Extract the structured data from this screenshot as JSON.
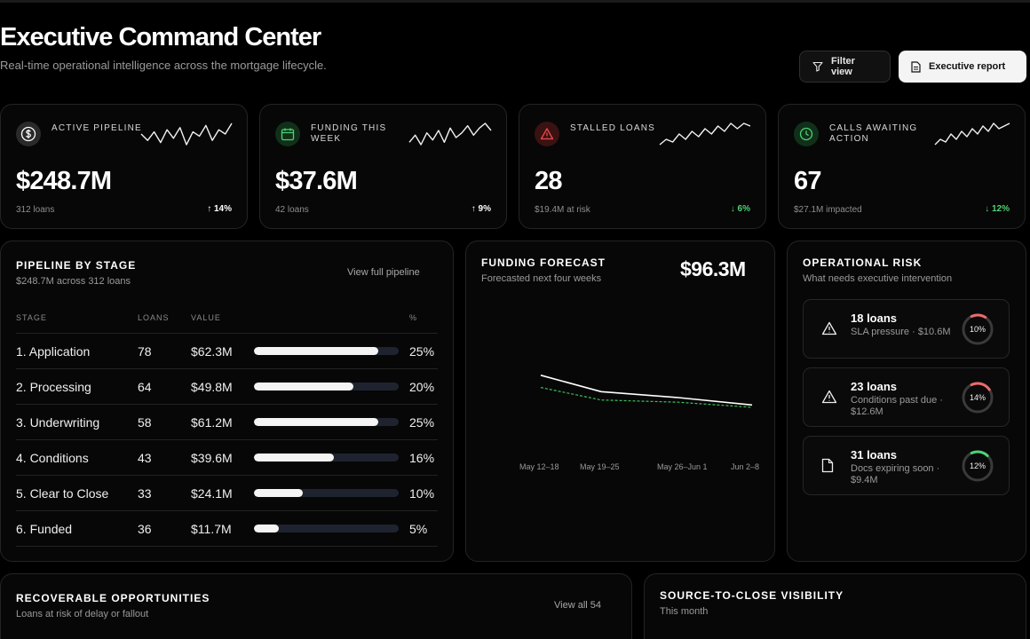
{
  "header": {
    "title": "Executive Command Center",
    "subtitle": "Real-time operational intelligence across the mortgage lifecycle.",
    "filter_label": "Filter view",
    "report_label": "Executive report"
  },
  "kpis": [
    {
      "icon": "dollar-icon",
      "label": "Active pipeline",
      "value": "$248.7M",
      "sub": "312 loans",
      "delta": "↑ 14%",
      "delta_color": "#ffffff",
      "icon_bg": "#2a2a2a",
      "icon_color": "#ffffff",
      "spark": [
        8,
        5,
        9,
        4,
        10,
        6,
        11,
        3,
        9,
        7,
        12,
        5,
        10,
        8,
        13
      ]
    },
    {
      "icon": "calendar-icon",
      "label": "Funding this week",
      "value": "$37.6M",
      "sub": "42 loans",
      "delta": "↑ 9%",
      "delta_color": "#ffffff",
      "icon_bg": "#10301a",
      "icon_color": "#4fd173",
      "spark": [
        5,
        8,
        4,
        9,
        6,
        10,
        5,
        11,
        7,
        9,
        12,
        8,
        11,
        13,
        10
      ]
    },
    {
      "icon": "alert-icon",
      "label": "Stalled loans",
      "value": "28",
      "sub": "$19.4M at risk",
      "delta": "↓ 6%",
      "delta_color": "#4fd173",
      "icon_bg": "#3a1212",
      "icon_color": "#ef4b4b",
      "spark": [
        4,
        6,
        5,
        8,
        6,
        9,
        7,
        10,
        8,
        11,
        9,
        12,
        10,
        12,
        11
      ]
    },
    {
      "icon": "clock-icon",
      "label": "Calls awaiting action",
      "value": "67",
      "sub": "$27.1M impacted",
      "delta": "↓ 12%",
      "delta_color": "#4fd173",
      "icon_bg": "#10301a",
      "icon_color": "#4fd173",
      "spark": [
        5,
        7,
        6,
        9,
        7,
        10,
        8,
        11,
        9,
        12,
        10,
        13,
        11,
        12,
        13
      ]
    }
  ],
  "pipeline": {
    "title": "Pipeline by stage",
    "subtitle": "$248.7M across 312 loans",
    "link": "View full pipeline",
    "headers": {
      "stage": "STAGE",
      "loans": "LOANS",
      "value": "VALUE",
      "pct": "%"
    },
    "rows": [
      {
        "stage": "1. Application",
        "loans": "78",
        "value": "$62.3M",
        "pct": "25%",
        "share": 0.86
      },
      {
        "stage": "2. Processing",
        "loans": "64",
        "value": "$49.8M",
        "pct": "20%",
        "share": 0.69
      },
      {
        "stage": "3. Underwriting",
        "loans": "58",
        "value": "$61.2M",
        "pct": "25%",
        "share": 0.86
      },
      {
        "stage": "4. Conditions",
        "loans": "43",
        "value": "$39.6M",
        "pct": "16%",
        "share": 0.55
      },
      {
        "stage": "5. Clear to Close",
        "loans": "33",
        "value": "$24.1M",
        "pct": "10%",
        "share": 0.34
      },
      {
        "stage": "6. Funded",
        "loans": "36",
        "value": "$11.7M",
        "pct": "5%",
        "share": 0.17
      }
    ]
  },
  "forecast": {
    "title": "Funding forecast",
    "subtitle": "Forecasted next four weeks",
    "total": "$96.3M"
  },
  "chart_data": {
    "type": "line",
    "categories": [
      "May 12–18",
      "May 19–25",
      "May 26–Jun 1",
      "Jun 2–8"
    ],
    "series": [
      {
        "values": [
          31.5,
          24.8,
          22.4,
          19.4
        ],
        "color": "#ffffff",
        "style": "solid"
      },
      {
        "values": [
          26.5,
          21.4,
          20.5,
          18.4
        ],
        "color": "#3fbf5c",
        "style": "dashed"
      }
    ],
    "ylim": [
      0,
      65
    ],
    "grid": false
  },
  "risk": {
    "title": "Operational risk",
    "subtitle": "What needs executive intervention",
    "items": [
      {
        "icon": "warning-icon",
        "title": "18 loans",
        "desc": "SLA pressure · $10.6M",
        "pct": "10%",
        "fraction": 0.1,
        "ring_color": "#ef6a6a"
      },
      {
        "icon": "warning-icon",
        "title": "23 loans",
        "desc": "Conditions past due · $12.6M",
        "pct": "14%",
        "fraction": 0.14,
        "ring_color": "#ef6a6a"
      },
      {
        "icon": "document-icon",
        "title": "31 loans",
        "desc": "Docs expiring soon · $9.4M",
        "pct": "12%",
        "fraction": 0.12,
        "ring_color": "#4fd173"
      }
    ]
  },
  "opportunities": {
    "title": "Recoverable opportunities",
    "subtitle": "Loans at risk of delay or fallout",
    "link": "View all 54"
  },
  "source": {
    "title": "Source-to-close visibility",
    "subtitle": "This month"
  }
}
